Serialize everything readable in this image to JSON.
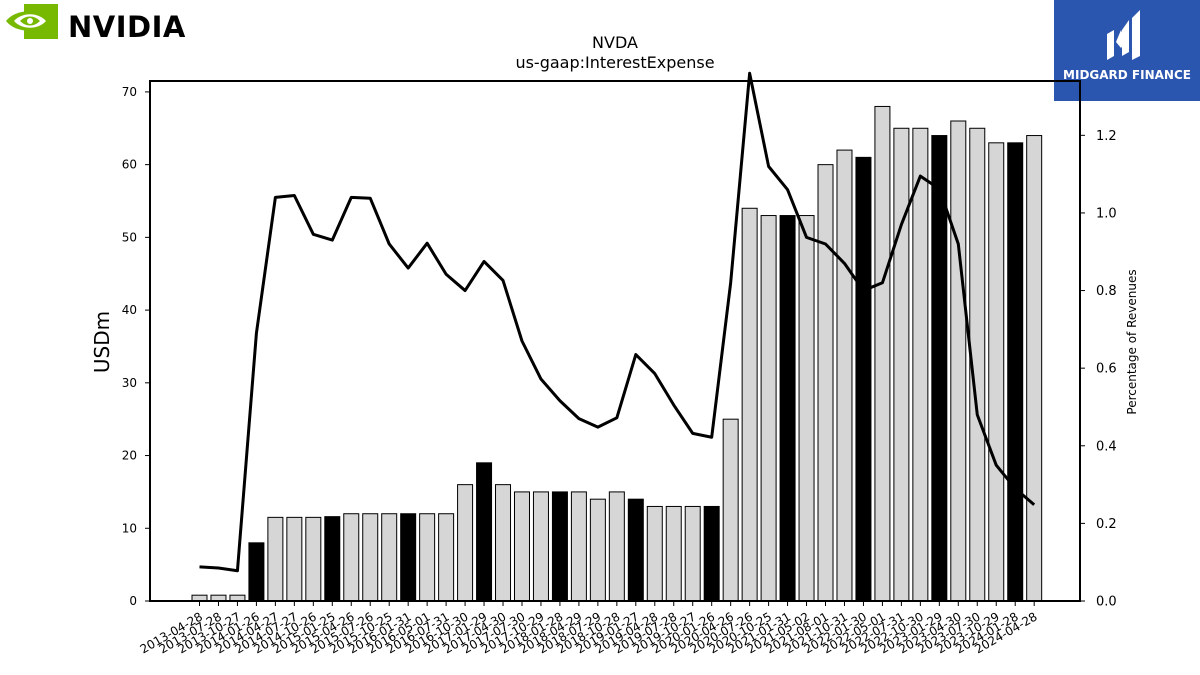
{
  "brand": {
    "name": "NVIDIA",
    "logo_color": "#76b900",
    "logo_icon": "nvidia-eye-icon"
  },
  "badge": {
    "label": "MIDGARD FINANCE",
    "color": "#2a56b0",
    "icon": "midgard-m-icon"
  },
  "chart_data": {
    "type": "bar",
    "title": "NVDA",
    "subtitle": "us-gaap:InterestExpense",
    "ylabel": "USDm",
    "y2label": "Percentage of Revenues",
    "ylim": [
      0,
      71.5
    ],
    "y2lim": [
      0,
      1.34
    ],
    "yticks": [
      0,
      10,
      20,
      30,
      40,
      50,
      60,
      70
    ],
    "y2ticks": [
      "0.0",
      "0.2",
      "0.4",
      "0.6",
      "0.8",
      "1.0",
      "1.2"
    ],
    "grid": false,
    "bar_colors": {
      "quarter": "#d6d6d6",
      "year_end": "#000000",
      "edge": "#000000"
    },
    "line_color": "#000000",
    "categories": [
      "2013-04-28",
      "2013-07-28",
      "2013-10-27",
      "2014-01-26",
      "2014-04-27",
      "2014-07-27",
      "2014-10-26",
      "2015-01-25",
      "2015-04-26",
      "2015-07-26",
      "2015-10-25",
      "2016-01-31",
      "2016-05-01",
      "2016-07-31",
      "2016-10-30",
      "2017-01-29",
      "2017-04-30",
      "2017-07-30",
      "2017-10-29",
      "2018-01-28",
      "2018-04-29",
      "2018-07-29",
      "2018-10-28",
      "2019-01-27",
      "2019-04-28",
      "2019-07-28",
      "2019-10-27",
      "2020-01-26",
      "2020-04-26",
      "2020-07-26",
      "2020-10-25",
      "2021-01-31",
      "2021-05-02",
      "2021-08-01",
      "2021-10-31",
      "2022-01-30",
      "2022-05-01",
      "2022-07-31",
      "2022-10-30",
      "2023-01-29",
      "2023-04-30",
      "2023-07-30",
      "2023-10-29",
      "2024-01-28",
      "2024-04-28"
    ],
    "series": [
      {
        "values": [
          0.8,
          0.8,
          0.8,
          8,
          11.5,
          11.5,
          11.5,
          11.6,
          12,
          12,
          12,
          12,
          12,
          12,
          16,
          19,
          16,
          15,
          15,
          15,
          15,
          14,
          15,
          14,
          13,
          13,
          13,
          13,
          25,
          54,
          53,
          53,
          53,
          60,
          62,
          61,
          68,
          65,
          65,
          64,
          66,
          65,
          63,
          63,
          64
        ],
        "year_end": [
          false,
          false,
          false,
          true,
          false,
          false,
          false,
          true,
          false,
          false,
          false,
          true,
          false,
          false,
          false,
          true,
          false,
          false,
          false,
          true,
          false,
          false,
          false,
          true,
          false,
          false,
          false,
          true,
          false,
          false,
          false,
          true,
          false,
          false,
          false,
          true,
          false,
          false,
          false,
          true,
          false,
          false,
          false,
          true,
          false
        ]
      },
      {
        "type": "line",
        "axis": "right",
        "values": [
          0.088,
          0.085,
          0.078,
          0.69,
          1.04,
          1.045,
          0.945,
          0.93,
          1.04,
          1.038,
          0.92,
          0.858,
          0.922,
          0.842,
          0.8,
          0.875,
          0.826,
          0.67,
          0.572,
          0.516,
          0.47,
          0.448,
          0.472,
          0.635,
          0.586,
          0.505,
          0.432,
          0.422,
          0.82,
          1.36,
          1.12,
          1.06,
          0.937,
          0.92,
          0.87,
          0.8,
          0.82,
          0.97,
          1.095,
          1.062,
          0.92,
          0.48,
          0.35,
          0.29,
          0.248
        ]
      }
    ]
  }
}
